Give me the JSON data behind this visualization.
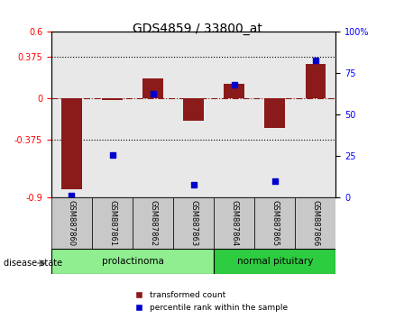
{
  "title": "GDS4859 / 33800_at",
  "samples": [
    "GSM887860",
    "GSM887861",
    "GSM887862",
    "GSM887863",
    "GSM887864",
    "GSM887865",
    "GSM887866"
  ],
  "transformed_count": [
    -0.82,
    -0.02,
    0.18,
    -0.2,
    0.13,
    -0.27,
    0.31
  ],
  "percentile_rank": [
    1.5,
    26,
    63,
    8,
    68,
    10,
    83
  ],
  "ylim_left": [
    -0.9,
    0.6
  ],
  "ylim_right": [
    0,
    100
  ],
  "yticks_left": [
    -0.9,
    -0.375,
    0,
    0.375,
    0.6
  ],
  "yticks_right": [
    0,
    25,
    50,
    75,
    100
  ],
  "hlines": [
    0.375,
    -0.375
  ],
  "zero_line": 0,
  "groups": [
    {
      "label": "prolactinoma",
      "samples": [
        0,
        1,
        2,
        3
      ],
      "color": "#90EE90"
    },
    {
      "label": "normal pituitary",
      "samples": [
        4,
        5,
        6
      ],
      "color": "#2ECC40"
    }
  ],
  "bar_color": "#8B1A1A",
  "dot_color": "#0000CC",
  "background_color": "#D3D3D3",
  "plot_bg": "#E8E8E8",
  "disease_state_label": "disease state",
  "legend_bar": "transformed count",
  "legend_dot": "percentile rank within the sample"
}
